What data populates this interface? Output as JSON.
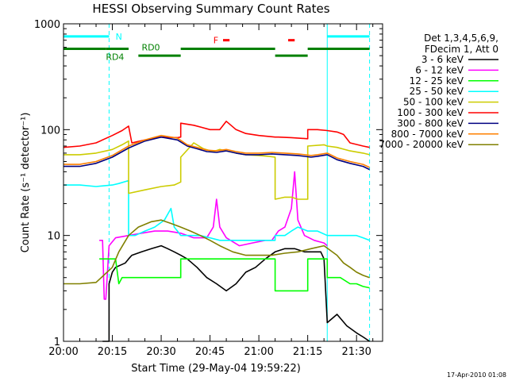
{
  "chart_data": {
    "type": "line",
    "title": "HESSI Observing Summary Count Rates",
    "xlabel": "Start Time (29-May-04 19:59:22)",
    "ylabel": "Count Rate (s⁻¹ detector⁻¹)",
    "x_unit": "minutes since 20:00",
    "xlim": [
      0,
      98
    ],
    "ylim": [
      1,
      1000
    ],
    "y_scale": "log",
    "x_ticks": [
      {
        "v": 0,
        "label": "20:00"
      },
      {
        "v": 15,
        "label": "20:15"
      },
      {
        "v": 30,
        "label": "20:30"
      },
      {
        "v": 45,
        "label": "20:45"
      },
      {
        "v": 60,
        "label": "21:00"
      },
      {
        "v": 75,
        "label": "21:15"
      },
      {
        "v": 90,
        "label": "21:30"
      }
    ],
    "y_ticks": [
      {
        "v": 1,
        "label": "1"
      },
      {
        "v": 10,
        "label": "10"
      },
      {
        "v": 100,
        "label": "100"
      },
      {
        "v": 1000,
        "label": "1000"
      }
    ],
    "legend_header": [
      "Det 1,3,4,5,6,9,",
      "FDecim 1, Att 0"
    ],
    "legend_position": "right",
    "timestamp": "17-Apr-2010 01:08",
    "annotations": {
      "labels": [
        {
          "text": "N",
          "x": 16,
          "y": 760,
          "color": "#00ffff"
        },
        {
          "text": "RD0",
          "x": 24,
          "y": 600,
          "color": "#008000"
        },
        {
          "text": "RD4",
          "x": 13,
          "y": 490,
          "color": "#008000"
        },
        {
          "text": "F",
          "x": 46,
          "y": 700,
          "color": "#ff0000"
        }
      ],
      "bars": [
        {
          "x0": 0,
          "x1": 14,
          "y": 760,
          "color": "#00ffff"
        },
        {
          "x0": 81,
          "x1": 94,
          "y": 760,
          "color": "#00ffff"
        },
        {
          "x0": 0,
          "x1": 13,
          "y": 580,
          "color": "#008000"
        },
        {
          "x0": 13,
          "x1": 20,
          "y": 580,
          "color": "#008000"
        },
        {
          "x0": 23,
          "x1": 36,
          "y": 500,
          "color": "#008000"
        },
        {
          "x0": 36,
          "x1": 65,
          "y": 580,
          "color": "#008000"
        },
        {
          "x0": 65,
          "x1": 75,
          "y": 500,
          "color": "#008000"
        },
        {
          "x0": 75,
          "x1": 94,
          "y": 580,
          "color": "#008000"
        },
        {
          "x0": 49,
          "x1": 51,
          "y": 700,
          "color": "#ff0000"
        },
        {
          "x0": 69,
          "x1": 71,
          "y": 700,
          "color": "#ff0000"
        }
      ],
      "vlines": [
        {
          "x": 0,
          "color": "#00ffff",
          "style": "solid"
        },
        {
          "x": 14,
          "color": "#00ffff",
          "style": "dashed"
        },
        {
          "x": 81,
          "color": "#00ffff",
          "style": "solid"
        },
        {
          "x": 94,
          "color": "#00ffff",
          "style": "dashed"
        }
      ]
    },
    "series": [
      {
        "name": "3 - 6 keV",
        "color": "#000000",
        "x": [
          12,
          14,
          14,
          15,
          16,
          19,
          20,
          21,
          24,
          27,
          30,
          32,
          34,
          36,
          38,
          41,
          44,
          47,
          50,
          53,
          56,
          59,
          62,
          65,
          68,
          71,
          74,
          77,
          79,
          80,
          81,
          81,
          84,
          87,
          90,
          92,
          94
        ],
        "y": [
          1,
          1,
          3.5,
          4.5,
          5,
          5.5,
          6,
          6.5,
          7,
          7.5,
          8,
          7.5,
          7,
          6.5,
          6,
          5,
          4,
          3.5,
          3,
          3.5,
          4.5,
          5,
          6,
          7,
          7.5,
          7.5,
          7,
          7,
          7,
          6,
          1.5,
          1.5,
          1.8,
          1.4,
          1.2,
          1.1,
          1
        ]
      },
      {
        "name": "6 - 12 keV",
        "color": "#ff00ff",
        "x": [
          11,
          12,
          12.5,
          13,
          14,
          16,
          20,
          24,
          28,
          32,
          36,
          40,
          44,
          46,
          47,
          48,
          50,
          54,
          58,
          62,
          64,
          66,
          68,
          70,
          71,
          72,
          74,
          77,
          80,
          81
        ],
        "y": [
          9,
          9,
          2.5,
          2.5,
          8,
          9.5,
          10,
          10.5,
          11,
          11,
          10.5,
          9.5,
          9.5,
          12,
          22,
          12,
          9.5,
          8,
          8.5,
          9,
          9,
          11,
          12,
          18,
          40,
          14,
          10,
          9,
          8.5,
          8
        ]
      },
      {
        "name": "12 - 25 keV",
        "color": "#00ff00",
        "x": [
          11,
          13,
          16,
          17,
          18,
          22,
          26,
          30,
          34,
          36,
          36,
          40,
          44,
          48,
          52,
          56,
          60,
          64,
          65,
          65,
          70,
          75,
          75,
          80,
          81,
          81,
          85,
          88,
          90,
          92,
          94
        ],
        "y": [
          6,
          6,
          6,
          3.5,
          4,
          4,
          4,
          4,
          4,
          4,
          6,
          6,
          6,
          6,
          6,
          6,
          6,
          6,
          6,
          3,
          3,
          3,
          6,
          6,
          6,
          4,
          4,
          3.5,
          3.5,
          3.3,
          3.2
        ]
      },
      {
        "name": "25 - 50 keV",
        "color": "#00ffff",
        "x": [
          0,
          5,
          10,
          15,
          17,
          20,
          20,
          22,
          25,
          28,
          31,
          33,
          34,
          35,
          36,
          36,
          39,
          42,
          45,
          48,
          51,
          54,
          57,
          60,
          63,
          65,
          65,
          68,
          70,
          72,
          75,
          78,
          81,
          84,
          88,
          90,
          92,
          94
        ],
        "y": [
          30,
          30,
          29,
          30,
          31,
          33,
          10,
          10,
          11,
          12,
          14,
          18,
          12,
          11,
          10,
          10,
          10,
          10,
          9.5,
          9,
          9,
          9,
          9,
          9,
          9,
          9,
          10,
          10,
          11,
          12,
          11,
          11,
          10,
          10,
          10,
          10,
          9.5,
          9
        ]
      },
      {
        "name": "50 - 100 keV",
        "color": "#cccc00",
        "x": [
          0,
          5,
          10,
          15,
          18,
          20,
          20,
          25,
          30,
          34,
          36,
          36,
          40,
          43,
          46,
          48,
          50,
          53,
          56,
          60,
          63,
          65,
          65,
          68,
          70,
          72,
          75,
          75,
          80,
          81,
          84,
          88,
          92,
          94
        ],
        "y": [
          58,
          58,
          60,
          65,
          72,
          78,
          25,
          27,
          29,
          30,
          32,
          55,
          75,
          66,
          62,
          65,
          63,
          60,
          58,
          57,
          56,
          55,
          22,
          23,
          23,
          22,
          22,
          70,
          72,
          70,
          68,
          63,
          60,
          58
        ]
      },
      {
        "name": "100 - 300 keV",
        "color": "#ff0000",
        "x": [
          0,
          5,
          10,
          15,
          18,
          20,
          21,
          25,
          30,
          35,
          36,
          36,
          40,
          45,
          48,
          50,
          53,
          56,
          60,
          65,
          66,
          70,
          75,
          75,
          78,
          81,
          84,
          86,
          88,
          92,
          94
        ],
        "y": [
          68,
          70,
          75,
          88,
          98,
          108,
          75,
          80,
          85,
          84,
          85,
          115,
          110,
          100,
          100,
          120,
          100,
          92,
          88,
          85,
          85,
          84,
          82,
          100,
          100,
          98,
          95,
          90,
          75,
          70,
          68
        ]
      },
      {
        "name": "300 - 800 keV",
        "color": "#000080",
        "x": [
          0,
          5,
          10,
          15,
          20,
          25,
          30,
          35,
          38,
          41,
          44,
          47,
          50,
          53,
          56,
          60,
          64,
          68,
          72,
          76,
          78,
          81,
          84,
          88,
          92,
          94
        ],
        "y": [
          45,
          45,
          48,
          55,
          67,
          78,
          85,
          80,
          70,
          66,
          62,
          61,
          63,
          60,
          58,
          58,
          59,
          58,
          57,
          55,
          56,
          58,
          52,
          48,
          45,
          42
        ]
      },
      {
        "name": "800 - 7000 keV",
        "color": "#ff8000",
        "x": [
          0,
          5,
          10,
          15,
          20,
          25,
          30,
          35,
          38,
          41,
          44,
          47,
          50,
          53,
          56,
          60,
          64,
          68,
          72,
          76,
          78,
          81,
          84,
          88,
          92,
          94
        ],
        "y": [
          47,
          47,
          50,
          57,
          70,
          80,
          88,
          83,
          72,
          68,
          64,
          63,
          65,
          62,
          60,
          60,
          61,
          60,
          59,
          57,
          58,
          60,
          54,
          50,
          47,
          44
        ]
      },
      {
        "name": "7000 - 20000 keV",
        "color": "#808000",
        "x": [
          0,
          5,
          10,
          15,
          17,
          20,
          23,
          27,
          30,
          33,
          36,
          39,
          42,
          45,
          48,
          52,
          56,
          60,
          64,
          68,
          72,
          76,
          80,
          84,
          86,
          88,
          90,
          92,
          94
        ],
        "y": [
          3.5,
          3.5,
          3.6,
          5,
          7,
          10,
          12,
          13.5,
          14,
          13,
          12,
          11,
          10,
          9,
          8,
          7,
          6.5,
          6.5,
          6.5,
          6.8,
          7,
          7.5,
          8,
          6.5,
          5.5,
          5,
          4.5,
          4.2,
          4
        ]
      }
    ]
  }
}
